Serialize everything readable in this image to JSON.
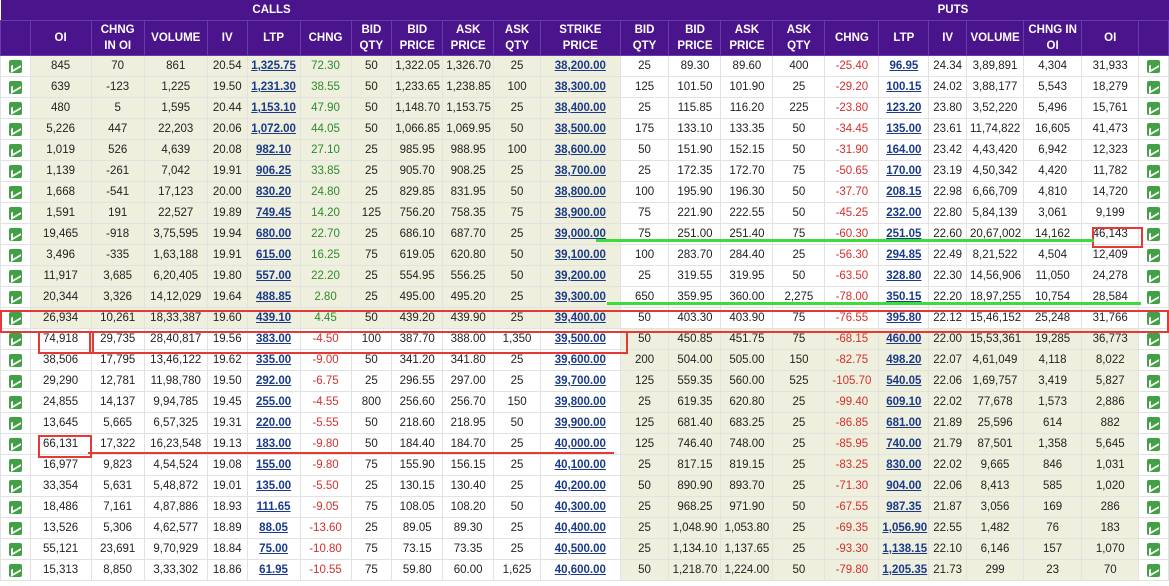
{
  "header": {
    "calls_label": "CALLS",
    "puts_label": "PUTS"
  },
  "columns": {
    "calls": [
      "OI",
      "CHNG IN OI",
      "VOLUME",
      "IV",
      "LTP",
      "CHNG",
      "BID QTY",
      "BID PRICE",
      "ASK PRICE",
      "ASK QTY"
    ],
    "strike": "STRIKE PRICE",
    "puts": [
      "BID QTY",
      "BID PRICE",
      "ASK PRICE",
      "ASK QTY",
      "CHNG",
      "LTP",
      "IV",
      "VOLUME",
      "CHNG IN OI",
      "OI"
    ]
  },
  "icons": {
    "row_chart": "line-chart-icon"
  },
  "colors": {
    "header_bg": "#4a148c",
    "itm_bg": "#efefdd",
    "negative": "#d32f2f",
    "positive": "#2e8b2e",
    "link": "#1a3a8a",
    "annotation_red": "#e53935",
    "annotation_green": "#3cdc3c"
  },
  "rows": [
    {
      "call": [
        "845",
        "70",
        "861",
        "20.54",
        "1,325.75",
        "72.30",
        "50",
        "1,322.05",
        "1,326.70",
        "25"
      ],
      "strike": "38,200.00",
      "put": [
        "25",
        "89.30",
        "89.60",
        "400",
        "-25.40",
        "96.95",
        "24.34",
        "3,89,891",
        "4,304",
        "31,933"
      ]
    },
    {
      "call": [
        "639",
        "-123",
        "1,225",
        "19.50",
        "1,231.30",
        "38.55",
        "50",
        "1,233.65",
        "1,238.85",
        "100"
      ],
      "strike": "38,300.00",
      "put": [
        "125",
        "101.50",
        "101.90",
        "25",
        "-29.20",
        "100.15",
        "24.02",
        "3,88,177",
        "5,543",
        "18,279"
      ]
    },
    {
      "call": [
        "480",
        "5",
        "1,595",
        "20.44",
        "1,153.10",
        "47.90",
        "50",
        "1,148.70",
        "1,153.75",
        "25"
      ],
      "strike": "38,400.00",
      "put": [
        "25",
        "115.85",
        "116.20",
        "225",
        "-23.80",
        "123.20",
        "23.80",
        "3,52,220",
        "5,496",
        "15,761"
      ]
    },
    {
      "call": [
        "5,226",
        "447",
        "22,203",
        "20.06",
        "1,072.00",
        "44.05",
        "50",
        "1,066.85",
        "1,069.95",
        "50"
      ],
      "strike": "38,500.00",
      "put": [
        "175",
        "133.10",
        "133.35",
        "50",
        "-34.45",
        "135.00",
        "23.61",
        "11,74,822",
        "16,605",
        "41,473"
      ]
    },
    {
      "call": [
        "1,019",
        "526",
        "4,639",
        "20.08",
        "982.10",
        "27.10",
        "25",
        "985.95",
        "988.95",
        "100"
      ],
      "strike": "38,600.00",
      "put": [
        "50",
        "151.90",
        "152.15",
        "50",
        "-31.90",
        "164.00",
        "23.42",
        "4,43,420",
        "6,942",
        "12,323"
      ]
    },
    {
      "call": [
        "1,139",
        "-261",
        "7,042",
        "19.91",
        "906.25",
        "33.85",
        "25",
        "905.70",
        "908.25",
        "25"
      ],
      "strike": "38,700.00",
      "put": [
        "25",
        "172.35",
        "172.70",
        "75",
        "-50.65",
        "170.00",
        "23.19",
        "4,50,342",
        "4,420",
        "11,782"
      ]
    },
    {
      "call": [
        "1,668",
        "-541",
        "17,123",
        "20.00",
        "830.20",
        "24.80",
        "25",
        "829.85",
        "831.95",
        "50"
      ],
      "strike": "38,800.00",
      "put": [
        "100",
        "195.90",
        "196.30",
        "50",
        "-37.70",
        "208.15",
        "22.98",
        "6,66,709",
        "4,810",
        "14,720"
      ]
    },
    {
      "call": [
        "1,591",
        "191",
        "22,527",
        "19.89",
        "749.45",
        "14.20",
        "125",
        "756.20",
        "758.35",
        "75"
      ],
      "strike": "38,900.00",
      "put": [
        "75",
        "221.90",
        "222.55",
        "50",
        "-45.25",
        "232.00",
        "22.80",
        "5,84,139",
        "3,061",
        "9,199"
      ]
    },
    {
      "call": [
        "19,465",
        "-918",
        "3,75,595",
        "19.94",
        "680.00",
        "22.70",
        "25",
        "686.10",
        "687.70",
        "25"
      ],
      "strike": "39,000.00",
      "put": [
        "75",
        "251.00",
        "251.40",
        "75",
        "-60.30",
        "251.05",
        "22.60",
        "20,67,002",
        "14,162",
        "46,143"
      ]
    },
    {
      "call": [
        "3,496",
        "-335",
        "1,63,188",
        "19.91",
        "615.00",
        "16.25",
        "75",
        "619.05",
        "620.80",
        "50"
      ],
      "strike": "39,100.00",
      "put": [
        "100",
        "283.70",
        "284.40",
        "25",
        "-56.30",
        "294.85",
        "22.49",
        "8,21,522",
        "4,504",
        "12,409"
      ]
    },
    {
      "call": [
        "11,917",
        "3,685",
        "6,20,405",
        "19.80",
        "557.00",
        "22.20",
        "25",
        "554.95",
        "556.25",
        "50"
      ],
      "strike": "39,200.00",
      "put": [
        "25",
        "319.55",
        "319.95",
        "50",
        "-63.50",
        "328.80",
        "22.30",
        "14,56,906",
        "11,050",
        "24,278"
      ]
    },
    {
      "call": [
        "20,344",
        "3,326",
        "14,12,029",
        "19.64",
        "488.85",
        "2.80",
        "25",
        "495.00",
        "495.20",
        "25"
      ],
      "strike": "39,300.00",
      "put": [
        "650",
        "359.95",
        "360.00",
        "2,275",
        "-78.00",
        "350.15",
        "22.20",
        "18,97,255",
        "10,754",
        "28,584"
      ]
    },
    {
      "call": [
        "26,934",
        "10,261",
        "18,33,387",
        "19.60",
        "439.10",
        "4.45",
        "50",
        "439.20",
        "439.90",
        "25"
      ],
      "strike": "39,400.00",
      "put": [
        "50",
        "403.30",
        "403.90",
        "75",
        "-76.55",
        "395.80",
        "22.12",
        "15,46,152",
        "25,248",
        "31,766"
      ]
    },
    {
      "call": [
        "74,918",
        "29,735",
        "28,40,817",
        "19.56",
        "383.00",
        "-4.50",
        "100",
        "387.70",
        "388.00",
        "1,350"
      ],
      "strike": "39,500.00",
      "put": [
        "50",
        "450.85",
        "451.75",
        "75",
        "-68.15",
        "460.00",
        "22.00",
        "15,53,361",
        "19,285",
        "36,773"
      ]
    },
    {
      "call": [
        "38,506",
        "17,795",
        "13,46,122",
        "19.62",
        "335.00",
        "-9.00",
        "50",
        "341.20",
        "341.80",
        "25"
      ],
      "strike": "39,600.00",
      "put": [
        "200",
        "504.00",
        "505.00",
        "150",
        "-82.75",
        "498.20",
        "22.07",
        "4,61,049",
        "4,118",
        "8,022"
      ]
    },
    {
      "call": [
        "29,290",
        "12,781",
        "11,98,780",
        "19.50",
        "292.00",
        "-6.75",
        "25",
        "296.55",
        "297.00",
        "25"
      ],
      "strike": "39,700.00",
      "put": [
        "125",
        "559.35",
        "560.00",
        "525",
        "-105.70",
        "540.05",
        "22.06",
        "1,69,757",
        "3,419",
        "5,827"
      ]
    },
    {
      "call": [
        "24,855",
        "14,137",
        "9,94,785",
        "19.45",
        "255.00",
        "-4.55",
        "800",
        "256.60",
        "256.70",
        "150"
      ],
      "strike": "39,800.00",
      "put": [
        "25",
        "619.35",
        "620.80",
        "25",
        "-99.40",
        "609.10",
        "22.02",
        "77,678",
        "1,573",
        "2,886"
      ]
    },
    {
      "call": [
        "13,645",
        "5,665",
        "6,57,325",
        "19.31",
        "220.00",
        "-5.55",
        "50",
        "218.60",
        "218.95",
        "50"
      ],
      "strike": "39,900.00",
      "put": [
        "125",
        "681.40",
        "683.25",
        "25",
        "-86.85",
        "681.00",
        "21.89",
        "25,596",
        "614",
        "882"
      ]
    },
    {
      "call": [
        "66,131",
        "17,322",
        "16,23,548",
        "19.13",
        "183.00",
        "-9.80",
        "50",
        "184.40",
        "184.70",
        "25"
      ],
      "strike": "40,000.00",
      "put": [
        "125",
        "746.40",
        "748.00",
        "25",
        "-85.95",
        "740.00",
        "21.79",
        "87,501",
        "1,358",
        "5,645"
      ]
    },
    {
      "call": [
        "16,977",
        "9,823",
        "4,54,524",
        "19.08",
        "155.00",
        "-9.80",
        "75",
        "155.90",
        "156.15",
        "25"
      ],
      "strike": "40,100.00",
      "put": [
        "25",
        "817.15",
        "819.15",
        "25",
        "-83.25",
        "830.00",
        "22.02",
        "9,665",
        "846",
        "1,031"
      ]
    },
    {
      "call": [
        "33,354",
        "5,631",
        "5,48,872",
        "19.01",
        "135.00",
        "-5.50",
        "25",
        "130.15",
        "130.40",
        "25"
      ],
      "strike": "40,200.00",
      "put": [
        "50",
        "890.90",
        "893.70",
        "25",
        "-71.30",
        "904.00",
        "22.06",
        "8,413",
        "585",
        "1,020"
      ]
    },
    {
      "call": [
        "18,486",
        "7,161",
        "4,87,886",
        "18.93",
        "111.65",
        "-9.05",
        "75",
        "108.05",
        "108.20",
        "50"
      ],
      "strike": "40,300.00",
      "put": [
        "25",
        "968.25",
        "971.90",
        "50",
        "-67.55",
        "987.35",
        "21.87",
        "3,056",
        "169",
        "286"
      ]
    },
    {
      "call": [
        "13,526",
        "5,306",
        "4,62,577",
        "18.89",
        "88.05",
        "-13.60",
        "25",
        "89.05",
        "89.30",
        "25"
      ],
      "strike": "40,400.00",
      "put": [
        "25",
        "1,048.90",
        "1,053.80",
        "25",
        "-69.35",
        "1,056.90",
        "22.55",
        "1,482",
        "76",
        "183"
      ]
    },
    {
      "call": [
        "55,121",
        "23,691",
        "9,70,929",
        "18.84",
        "75.00",
        "-10.80",
        "75",
        "73.15",
        "73.35",
        "25"
      ],
      "strike": "40,500.00",
      "put": [
        "25",
        "1,134.10",
        "1,137.65",
        "25",
        "-93.30",
        "1,138.15",
        "22.10",
        "6,146",
        "157",
        "1,070"
      ]
    },
    {
      "call": [
        "15,313",
        "8,850",
        "3,33,302",
        "18.86",
        "61.95",
        "-10.55",
        "75",
        "59.80",
        "60.00",
        "1,625"
      ],
      "strike": "40,600.00",
      "put": [
        "50",
        "1,218.70",
        "1,224.00",
        "50",
        "-79.80",
        "1,205.35",
        "21.73",
        "299",
        "23",
        "70"
      ]
    }
  ]
}
